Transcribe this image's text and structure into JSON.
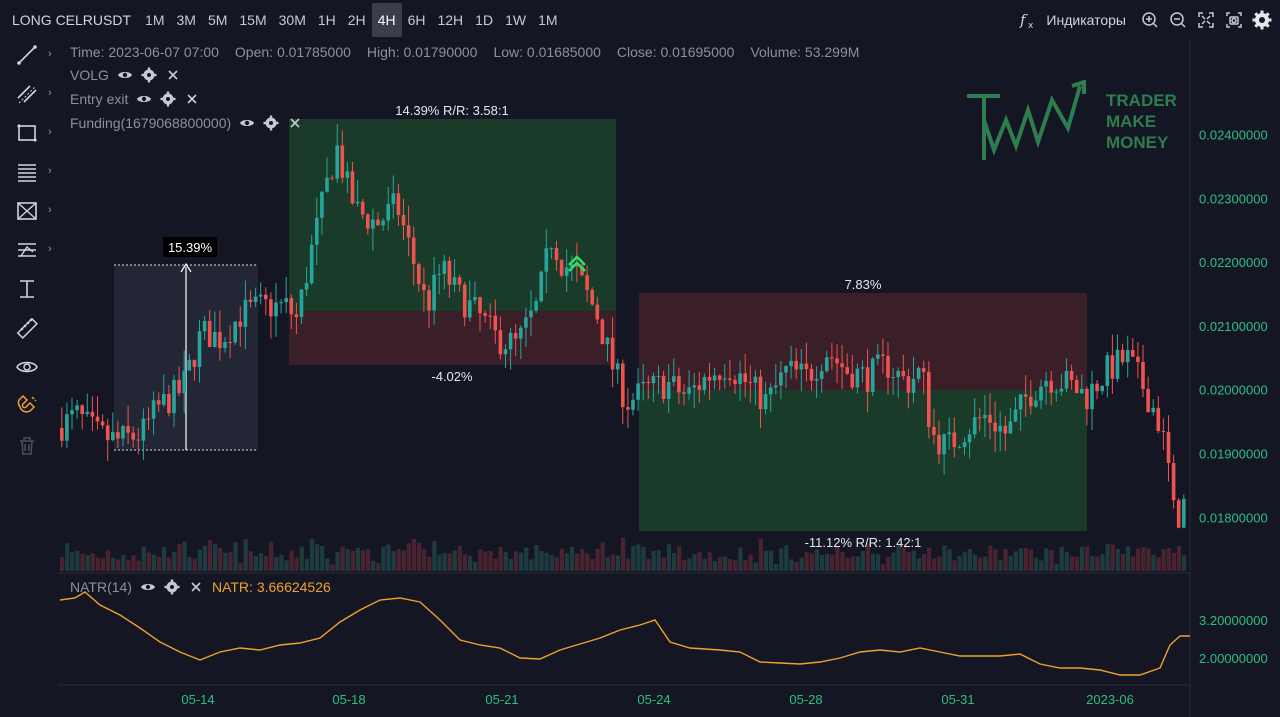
{
  "symbol": "LONG CELRUSDT",
  "timeframes": [
    "1M",
    "3M",
    "5M",
    "15M",
    "30M",
    "1H",
    "2H",
    "4H",
    "6H",
    "12H",
    "1D",
    "1W",
    "1M"
  ],
  "active_timeframe_index": 7,
  "toolbar_right": {
    "indicators_label": "Индикаторы"
  },
  "ohlc": {
    "time": "Time: 2023-06-07 07:00",
    "open": "Open: 0.01785000",
    "high": "High: 0.01790000",
    "low": "Low: 0.01685000",
    "close": "Close: 0.01695000",
    "volume": "Volume: 53.299M"
  },
  "indicators": [
    {
      "name": "VOLG"
    },
    {
      "name": "Entry exit"
    },
    {
      "name": "Funding(1679068800000)"
    }
  ],
  "natr": {
    "name": "NATR(14)",
    "value": "NATR: 3.66624526",
    "color": "#f0a030",
    "ticks": [
      "3.20000000",
      "2.00000000"
    ]
  },
  "logo": {
    "line1": "TRADER",
    "line2": "MAKE",
    "line3": "MONEY",
    "color": "#2e7d4f"
  },
  "price_axis": [
    "0.02400000",
    "0.02300000",
    "0.02200000",
    "0.02100000",
    "0.02000000",
    "0.01900000",
    "0.01800000"
  ],
  "price_axis_values": [
    0.024,
    0.023,
    0.022,
    0.021,
    0.02,
    0.019,
    0.018
  ],
  "time_axis": [
    "05-14",
    "05-18",
    "05-21",
    "05-24",
    "05-28",
    "05-31",
    "2023-06"
  ],
  "annotations": {
    "range_measure": "15.39%",
    "long_top": "14.39% R/R: 3.58:1",
    "long_bottom": "-4.02%",
    "short_top": "7.83%",
    "short_bottom": "-11.12% R/R: 1.42:1"
  },
  "colors": {
    "up": "#26a69a",
    "down": "#ef5350",
    "background": "#141723",
    "axis_text": "#2ebd85",
    "profit_zone": "#1b3b2a",
    "loss_zone": "#3a1e28"
  }
}
